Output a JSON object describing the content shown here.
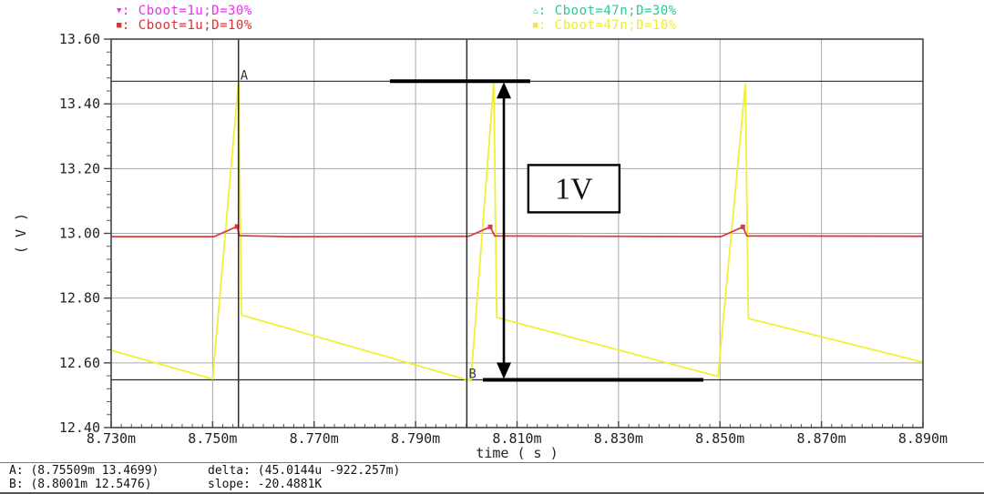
{
  "legend": {
    "items": [
      {
        "marker": "▼",
        "sep": ": ",
        "label": "Cboot=1u;D=30%",
        "color": "#e633e6"
      },
      {
        "marker": "■",
        "sep": ": ",
        "label": "Cboot=1u;D=10%",
        "color": "#d93333"
      },
      {
        "marker": "△",
        "sep": ": ",
        "label": "Cboot=47n;D=30%",
        "color": "#2fc98c"
      },
      {
        "marker": "■",
        "sep": ": ",
        "label": "Cboot=47n;D=10%",
        "color": "#eded35"
      }
    ]
  },
  "chart_data": {
    "type": "line",
    "title": "",
    "xlabel": "time ( s )",
    "ylabel": "( V )",
    "xlim": [
      8.73,
      8.89
    ],
    "ylim": [
      12.4,
      13.6
    ],
    "x_unit": "m",
    "x_tick_step": 0.02,
    "y_tick_step": 0.2,
    "x_minor_step": 0.002,
    "y_minor_step": 0.04,
    "grid": true,
    "legend_position": "top",
    "x_tick_labels": [
      "8.730m",
      "8.750m",
      "8.770m",
      "8.790m",
      "8.810m",
      "8.830m",
      "8.850m",
      "8.870m",
      "8.890m"
    ],
    "y_tick_labels": [
      "13.60",
      "13.40",
      "13.20",
      "13.00",
      "12.80",
      "12.60",
      "12.40"
    ],
    "series": [
      {
        "name": "Cboot=47n;D=10%",
        "color": "#f0f038",
        "width": 1.8,
        "points": [
          [
            8.73,
            12.639
          ],
          [
            8.75,
            12.55
          ],
          [
            8.7551,
            13.47
          ],
          [
            8.7557,
            12.748
          ],
          [
            8.8,
            12.548
          ],
          [
            8.8009,
            12.545
          ],
          [
            8.8054,
            13.465
          ],
          [
            8.806,
            12.74
          ],
          [
            8.8496,
            12.558
          ],
          [
            8.855,
            13.462
          ],
          [
            8.8556,
            12.737
          ],
          [
            8.89,
            12.602
          ]
        ],
        "marker_points": []
      },
      {
        "name": "Cboot=1u;D=10%",
        "color": "#dd3c3c",
        "width": 1.8,
        "points": [
          [
            8.73,
            12.99
          ],
          [
            8.7503,
            12.99
          ],
          [
            8.7548,
            13.021
          ],
          [
            8.7553,
            12.993
          ],
          [
            8.765,
            12.99
          ],
          [
            8.8005,
            12.991
          ],
          [
            8.8047,
            13.02
          ],
          [
            8.8056,
            12.992
          ],
          [
            8.8502,
            12.99
          ],
          [
            8.8545,
            13.02
          ],
          [
            8.8553,
            12.992
          ],
          [
            8.89,
            12.991
          ]
        ],
        "marker_points": [
          [
            8.7548,
            13.021
          ],
          [
            8.8047,
            13.02
          ],
          [
            8.8545,
            13.02
          ]
        ]
      }
    ],
    "annotations": {
      "markers": [
        {
          "name": "A",
          "t": 8.75509,
          "v": 13.4699
        },
        {
          "name": "B",
          "t": 8.8001,
          "v": 12.5476
        }
      ],
      "thick_segments": [
        {
          "v": 13.4699,
          "t1": 8.78495,
          "t2": 8.8126
        },
        {
          "v": 12.5476,
          "t1": 8.80327,
          "t2": 8.84673
        }
      ],
      "arrow": {
        "t": 8.8074,
        "v_top": 13.4699,
        "v_bottom": 12.5476
      },
      "label_box": {
        "text": "1V",
        "t": 8.8212,
        "v": 13.138
      }
    }
  },
  "status": {
    "line1_left": "A: (8.75509m 13.4699)",
    "line1_right": "delta: (45.0144u -922.257m)",
    "line2_left": "B: (8.8001m 12.5476)",
    "line2_right": "slope: -20.4881K"
  }
}
